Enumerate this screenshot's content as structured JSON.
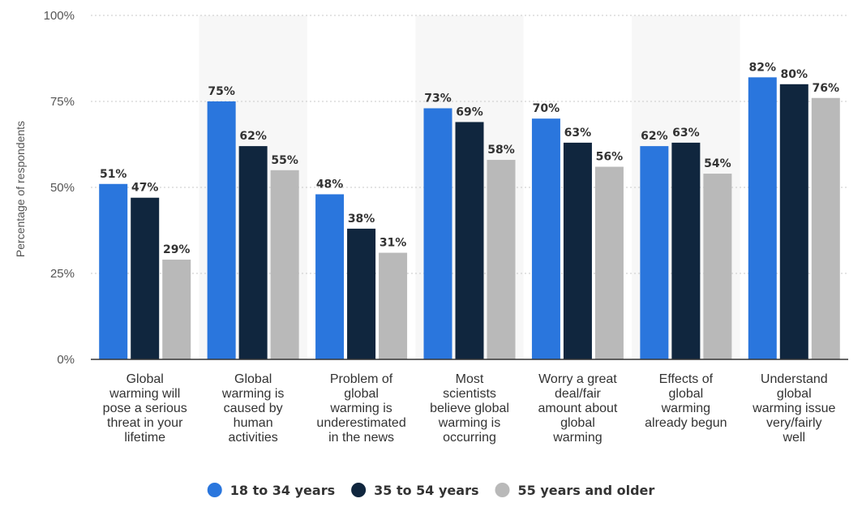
{
  "chart_data": {
    "type": "bar",
    "ylabel": "Percentage of respondents",
    "ylim": [
      0,
      100
    ],
    "yticks": [
      "0%",
      "25%",
      "50%",
      "75%",
      "100%"
    ],
    "ytick_values": [
      0,
      25,
      50,
      75,
      100
    ],
    "grid": true,
    "legend_position": "bottom",
    "categories": [
      [
        "Global",
        "warming will",
        "pose a serious",
        "threat in your",
        "lifetime"
      ],
      [
        "Global",
        "warming is",
        "caused by",
        "human",
        "activities"
      ],
      [
        "Problem of",
        "global",
        "warming is",
        "underestimated",
        "in the news"
      ],
      [
        "Most",
        "scientists",
        "believe global",
        "warming is",
        "occurring"
      ],
      [
        "Worry a great",
        "deal/fair",
        "amount about",
        "global",
        "warming"
      ],
      [
        "Effects of",
        "global",
        "warming",
        "already begun"
      ],
      [
        "Understand",
        "global",
        "warming issue",
        "very/fairly",
        "well"
      ]
    ],
    "series": [
      {
        "name": "18 to 34 years",
        "color": "#2a76dd",
        "values": [
          51,
          75,
          48,
          73,
          70,
          62,
          82
        ],
        "labels": [
          "51%",
          "75%",
          "48%",
          "73%",
          "70%",
          "62%",
          "82%"
        ]
      },
      {
        "name": "35 to 54 years",
        "color": "#10263e",
        "values": [
          47,
          62,
          38,
          69,
          63,
          63,
          80
        ],
        "labels": [
          "47%",
          "62%",
          "38%",
          "69%",
          "63%",
          "63%",
          "80%"
        ]
      },
      {
        "name": "55 years and older",
        "color": "#b9b9b9",
        "values": [
          29,
          55,
          31,
          58,
          56,
          54,
          76
        ],
        "labels": [
          "29%",
          "55%",
          "31%",
          "58%",
          "56%",
          "54%",
          "76%"
        ]
      }
    ]
  }
}
